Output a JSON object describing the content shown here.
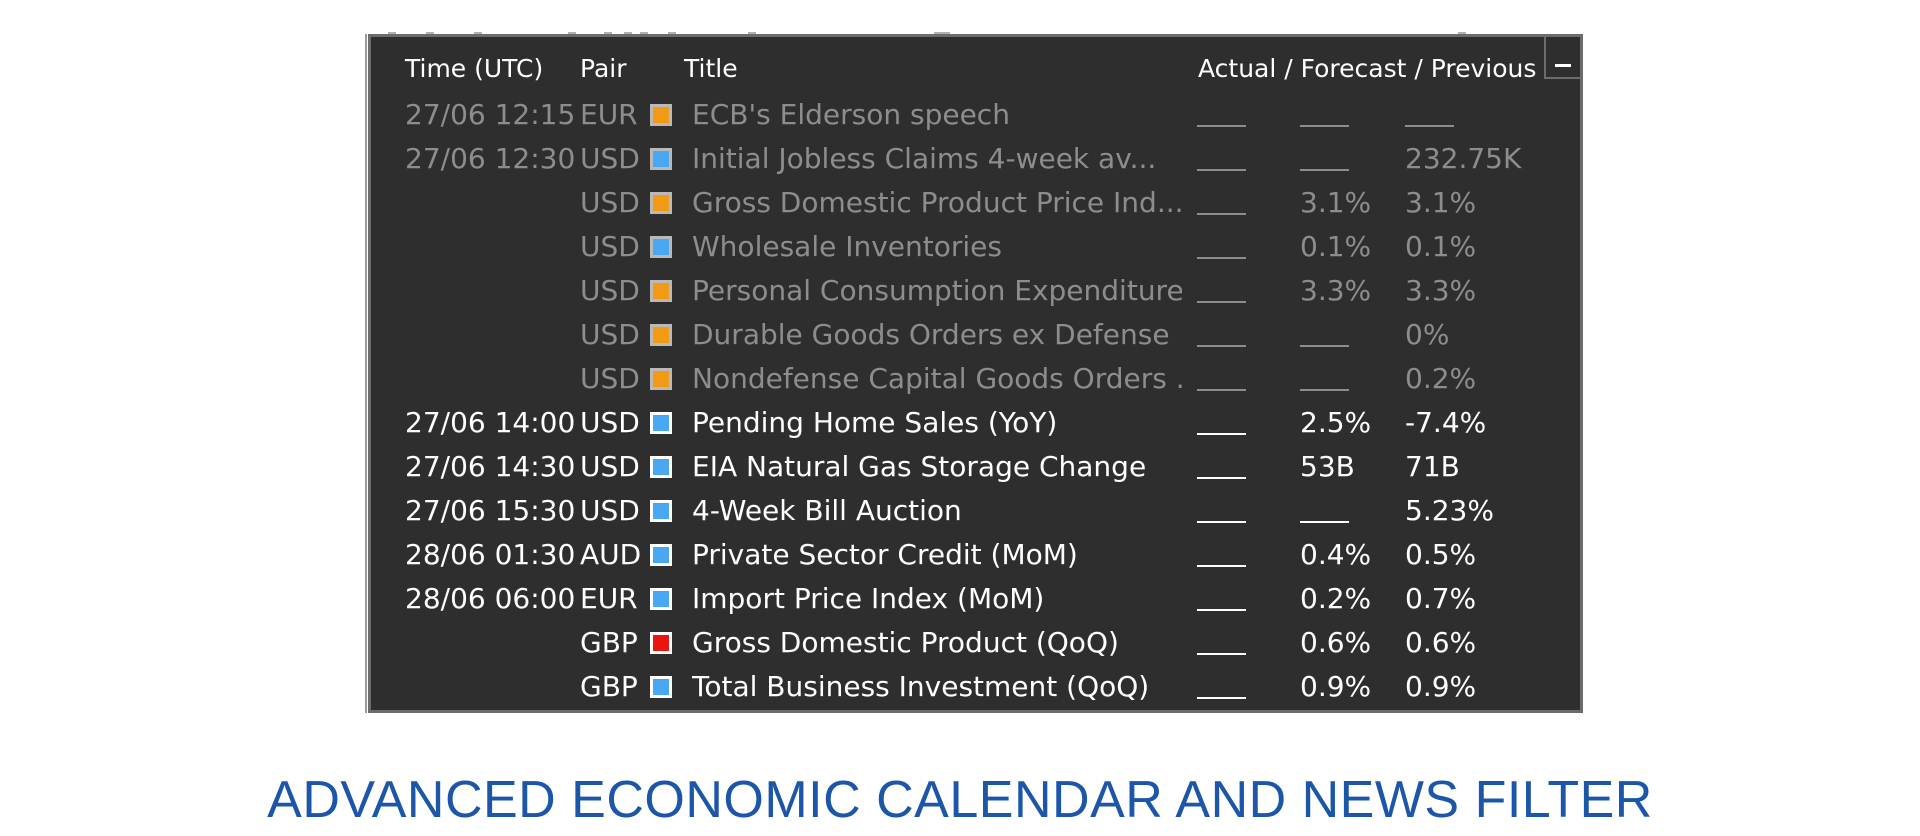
{
  "header": {
    "time_label": "Time (UTC)",
    "pair_label": "Pair",
    "title_label": "Title",
    "values_label": "Actual / Forecast / Previous"
  },
  "minimize_icon": "minimize-icon",
  "colors": {
    "panel_bg": "#2e2e2e",
    "high_impact": "#e8160f",
    "medium_impact": "#f29a13",
    "low_impact": "#4aa8f2",
    "past_text": "#8d8d8d",
    "upcoming_text": "#ffffff",
    "caption": "#1b56a8"
  },
  "events": [
    {
      "time": "27/06 12:15",
      "pair": "EUR",
      "impact": "medium",
      "title": "ECB's Elderson speech",
      "actual": "",
      "forecast": "",
      "previous": "",
      "past": true
    },
    {
      "time": "27/06 12:30",
      "pair": "USD",
      "impact": "low",
      "title": "Initial Jobless Claims 4-week av...",
      "actual": "",
      "forecast": "",
      "previous": "232.75K",
      "past": true
    },
    {
      "time": "",
      "pair": "USD",
      "impact": "medium",
      "title": "Gross Domestic Product Price Ind...",
      "actual": "",
      "forecast": "3.1%",
      "previous": "3.1%",
      "past": true
    },
    {
      "time": "",
      "pair": "USD",
      "impact": "low",
      "title": "Wholesale Inventories",
      "actual": "",
      "forecast": "0.1%",
      "previous": "0.1%",
      "past": true
    },
    {
      "time": "",
      "pair": "USD",
      "impact": "medium",
      "title": "Personal Consumption Expenditure...",
      "actual": "",
      "forecast": "3.3%",
      "previous": "3.3%",
      "past": true
    },
    {
      "time": "",
      "pair": "USD",
      "impact": "medium",
      "title": "Durable Goods Orders ex Defense",
      "actual": "",
      "forecast": "",
      "previous": "0%",
      "past": true
    },
    {
      "time": "",
      "pair": "USD",
      "impact": "medium",
      "title": "Nondefense Capital Goods Orders ...",
      "actual": "",
      "forecast": "",
      "previous": "0.2%",
      "past": true
    },
    {
      "time": "27/06 14:00",
      "pair": "USD",
      "impact": "low",
      "title": "Pending Home Sales (YoY)",
      "actual": "",
      "forecast": "2.5%",
      "previous": "-7.4%",
      "past": false
    },
    {
      "time": "27/06 14:30",
      "pair": "USD",
      "impact": "low",
      "title": "EIA Natural Gas Storage Change",
      "actual": "",
      "forecast": "53B",
      "previous": "71B",
      "past": false
    },
    {
      "time": "27/06 15:30",
      "pair": "USD",
      "impact": "low",
      "title": "4-Week Bill Auction",
      "actual": "",
      "forecast": "",
      "previous": "5.23%",
      "past": false
    },
    {
      "time": "28/06 01:30",
      "pair": "AUD",
      "impact": "low",
      "title": "Private Sector Credit (MoM)",
      "actual": "",
      "forecast": "0.4%",
      "previous": "0.5%",
      "past": false
    },
    {
      "time": "28/06 06:00",
      "pair": "EUR",
      "impact": "low",
      "title": "Import Price Index (MoM)",
      "actual": "",
      "forecast": "0.2%",
      "previous": "0.7%",
      "past": false
    },
    {
      "time": "",
      "pair": "GBP",
      "impact": "high",
      "title": "Gross Domestic Product (QoQ)",
      "actual": "",
      "forecast": "0.6%",
      "previous": "0.6%",
      "past": false
    },
    {
      "time": "",
      "pair": "GBP",
      "impact": "low",
      "title": "Total Business Investment (QoQ)",
      "actual": "",
      "forecast": "0.9%",
      "previous": "0.9%",
      "past": false
    }
  ],
  "caption": "ADVANCED ECONOMIC CALENDAR AND NEWS FILTER"
}
